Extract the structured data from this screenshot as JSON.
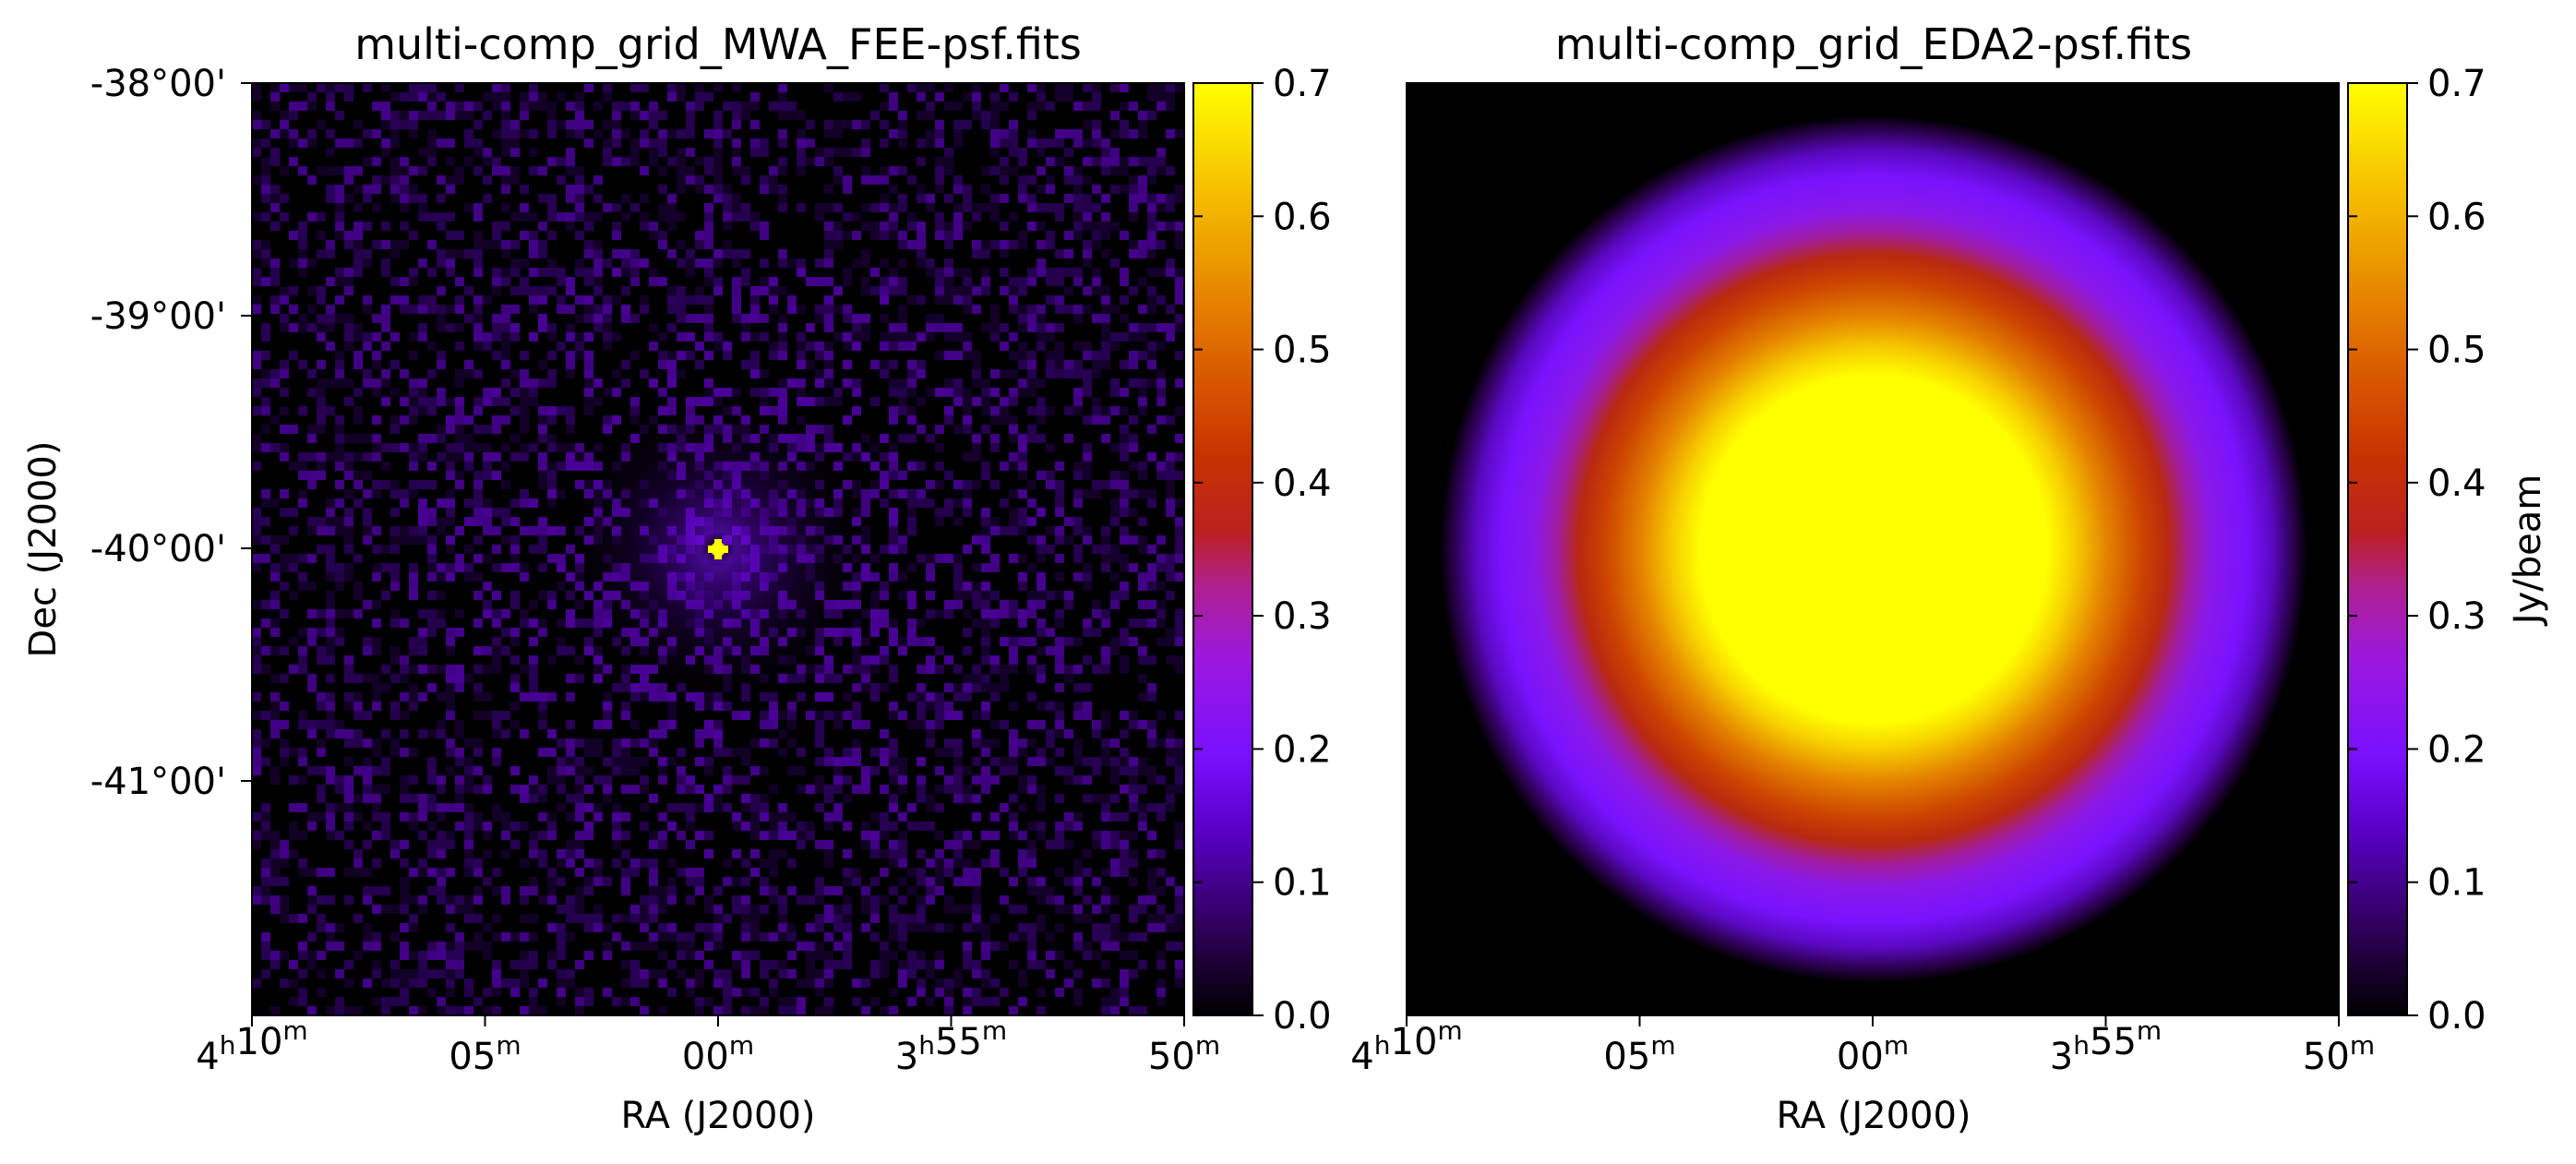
{
  "figure": {
    "colorbar_label": "Jy/beam"
  },
  "chart_data": [
    {
      "type": "heatmap",
      "title": "multi-comp_grid_MWA_FEE-psf.fits",
      "xlabel": "RA (J2000)",
      "ylabel": "Dec (J2000)",
      "x_ticks": [
        {
          "main": "4",
          "sup1": "h",
          "main2": "10",
          "sup2": "m"
        },
        {
          "main": "",
          "sup1": "",
          "main2": "05",
          "sup2": "m"
        },
        {
          "main": "",
          "sup1": "",
          "main2": "00",
          "sup2": "m"
        },
        {
          "main": "3",
          "sup1": "h",
          "main2": "55",
          "sup2": "m"
        },
        {
          "main": "",
          "sup1": "",
          "main2": "50",
          "sup2": "m"
        }
      ],
      "y_ticks": [
        "-38°00'",
        "-39°00'",
        "-40°00'",
        "-41°00'"
      ],
      "x_range": [
        "4h10m",
        "3h50m"
      ],
      "y_range_deg": [
        -42,
        -38
      ],
      "colormap": "gnuplot",
      "colorbar": {
        "range": [
          0.0,
          0.7
        ],
        "ticks": [
          "0.0",
          "0.1",
          "0.2",
          "0.3",
          "0.4",
          "0.5",
          "0.6",
          "0.7"
        ],
        "label": ""
      },
      "description_values": {
        "peak_center": 0.7,
        "peak_ra": "4h00m",
        "peak_dec": "-40°00'",
        "background_max": 0.06
      },
      "grid": false
    },
    {
      "type": "heatmap",
      "title": "multi-comp_grid_EDA2-psf.fits",
      "xlabel": "RA (J2000)",
      "ylabel": "",
      "x_ticks": [
        {
          "main": "4",
          "sup1": "h",
          "main2": "10",
          "sup2": "m"
        },
        {
          "main": "",
          "sup1": "",
          "main2": "05",
          "sup2": "m"
        },
        {
          "main": "",
          "sup1": "",
          "main2": "00",
          "sup2": "m"
        },
        {
          "main": "3",
          "sup1": "h",
          "main2": "55",
          "sup2": "m"
        },
        {
          "main": "",
          "sup1": "",
          "main2": "50",
          "sup2": "m"
        }
      ],
      "y_ticks": [],
      "colormap": "gnuplot",
      "colorbar": {
        "range": [
          0.0,
          0.7
        ],
        "ticks": [
          "0.0",
          "0.1",
          "0.2",
          "0.3",
          "0.4",
          "0.5",
          "0.6",
          "0.7"
        ],
        "label": "Jy/beam"
      },
      "radial_profile": {
        "center_value": 0.7,
        "plateau_value": 0.7,
        "edge_value": 0.0
      },
      "grid": false
    }
  ]
}
